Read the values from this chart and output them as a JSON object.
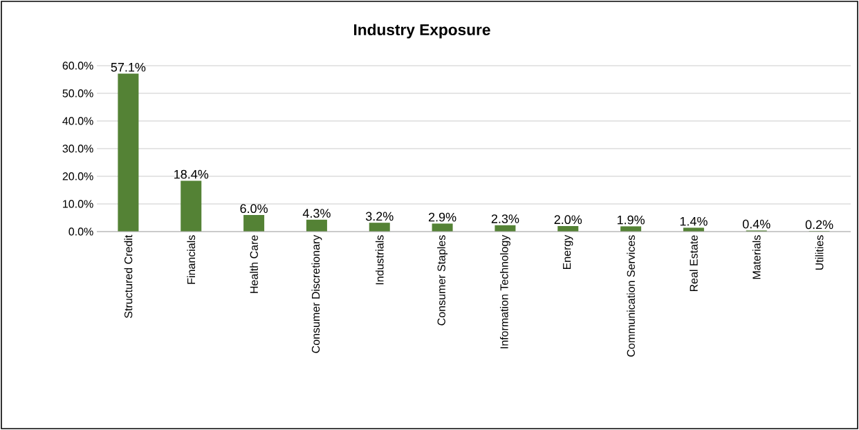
{
  "chart_data": {
    "type": "bar",
    "title": "Industry Exposure",
    "categories": [
      "Structured Credit",
      "Financials",
      "Health Care",
      "Consumer Discretionary",
      "Industrials",
      "Consumer Staples",
      "Information Technology",
      "Energy",
      "Communication Services",
      "Real Estate",
      "Materials",
      "Utilities"
    ],
    "values": [
      57.1,
      18.4,
      6.0,
      4.3,
      3.2,
      2.9,
      2.3,
      2.0,
      1.9,
      1.4,
      0.4,
      0.2
    ],
    "value_labels": [
      "57.1%",
      "18.4%",
      "6.0%",
      "4.3%",
      "3.2%",
      "2.9%",
      "2.3%",
      "2.0%",
      "1.9%",
      "1.4%",
      "0.4%",
      "0.2%"
    ],
    "color": "#548235",
    "ylim": [
      0,
      60
    ],
    "yticks": [
      {
        "value": 0,
        "label": "0.0%"
      },
      {
        "value": 10,
        "label": "10.0%"
      },
      {
        "value": 20,
        "label": "20.0%"
      },
      {
        "value": 30,
        "label": "30.0%"
      },
      {
        "value": 40,
        "label": "40.0%"
      },
      {
        "value": 50,
        "label": "50.0%"
      },
      {
        "value": 60,
        "label": "60.0%"
      }
    ],
    "grid": "y"
  }
}
